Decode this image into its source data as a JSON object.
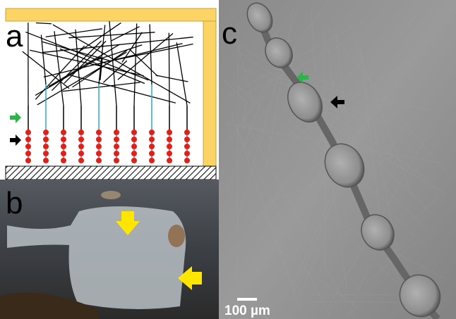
{
  "panels": [
    {
      "label": "a"
    },
    {
      "label": "b"
    },
    {
      "label": "c",
      "scale_bar": "100 µm"
    }
  ]
}
